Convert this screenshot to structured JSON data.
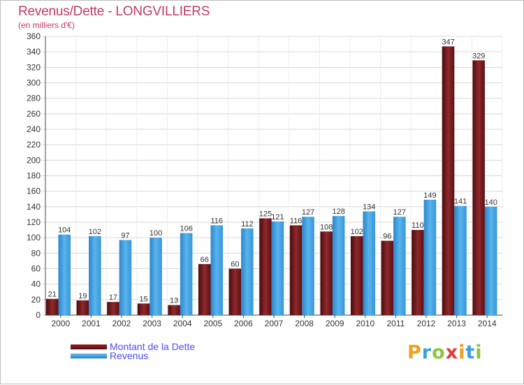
{
  "title": "Revenus/Dette - LONGVILLIERS",
  "subtitle": "(en milliers d'€)",
  "colors": {
    "title": "#c13a6a",
    "dette": "#7a1518",
    "revenus": "#3c9fe0",
    "legend_text": "#4a4aff"
  },
  "legend": {
    "items": [
      {
        "label": "Montant de la Dette",
        "color": "#7a1518"
      },
      {
        "label": "Revenus",
        "color": "#3c9fe0"
      }
    ]
  },
  "logo": {
    "text": "Proxiti"
  },
  "chart_data": {
    "type": "bar",
    "title": "Revenus/Dette - LONGVILLIERS",
    "ylabel": "(en milliers d'€)",
    "xlabel": "",
    "ylim": [
      0,
      360
    ],
    "ytick_step": 20,
    "grid": true,
    "legend_position": "bottom-left",
    "categories": [
      "2000",
      "2001",
      "2002",
      "2003",
      "2004",
      "2005",
      "2006",
      "2007",
      "2008",
      "2009",
      "2010",
      "2011",
      "2012",
      "2013",
      "2014"
    ],
    "series": [
      {
        "name": "Montant de la Dette",
        "values": [
          21,
          19,
          17,
          15,
          13,
          66,
          60,
          125,
          116,
          108,
          102,
          96,
          110,
          347,
          329
        ]
      },
      {
        "name": "Revenus",
        "values": [
          104,
          102,
          97,
          100,
          106,
          116,
          112,
          121,
          127,
          128,
          134,
          127,
          149,
          141,
          140
        ]
      }
    ]
  }
}
